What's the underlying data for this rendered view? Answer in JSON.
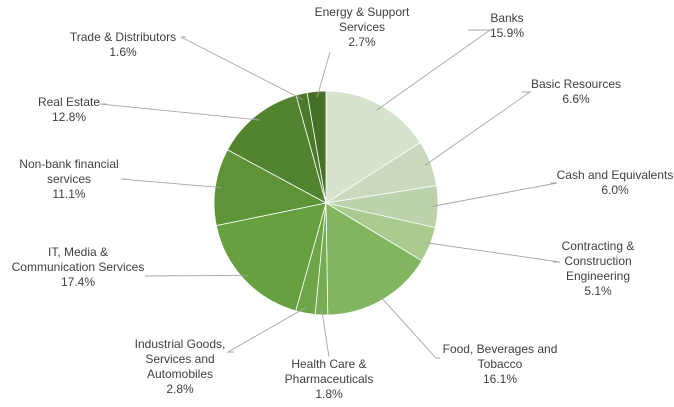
{
  "chart_data": {
    "type": "pie",
    "title": "",
    "slices": [
      {
        "label": "Banks",
        "value": 15.9,
        "value_label": "15.9%",
        "color": "#d5e3cb"
      },
      {
        "label": "Basic Resources",
        "value": 6.6,
        "value_label": "6.6%",
        "color": "#cad9bd"
      },
      {
        "label": "Cash and Equivalents",
        "value": 6.0,
        "value_label": "6.0%",
        "color": "#bcd2ac"
      },
      {
        "label": "Contracting & Construction Engineering",
        "value": 5.1,
        "value_label": "5.1%",
        "color": "#a9cb90"
      },
      {
        "label": "Food, Beverages and Tobacco",
        "value": 16.1,
        "value_label": "16.1%",
        "color": "#82b55f"
      },
      {
        "label": "Health Care & Pharmaceuticals",
        "value": 1.8,
        "value_label": "1.8%",
        "color": "#76ad52"
      },
      {
        "label": "Industrial Goods, Services and Automobiles",
        "value": 2.8,
        "value_label": "2.8%",
        "color": "#6ea549"
      },
      {
        "label": "IT, Media & Communication Services",
        "value": 17.4,
        "value_label": "17.4%",
        "color": "#66a03f"
      },
      {
        "label": "Non-bank financial services",
        "value": 11.1,
        "value_label": "11.1%",
        "color": "#5f9338"
      },
      {
        "label": "Real Estate",
        "value": 12.8,
        "value_label": "12.8%",
        "color": "#528430"
      },
      {
        "label": "Trade & Distributors",
        "value": 1.6,
        "value_label": "1.6%",
        "color": "#4b7a2c"
      },
      {
        "label": "Energy & Support Services",
        "value": 2.7,
        "value_label": "2.7%",
        "color": "#466f28"
      }
    ]
  }
}
